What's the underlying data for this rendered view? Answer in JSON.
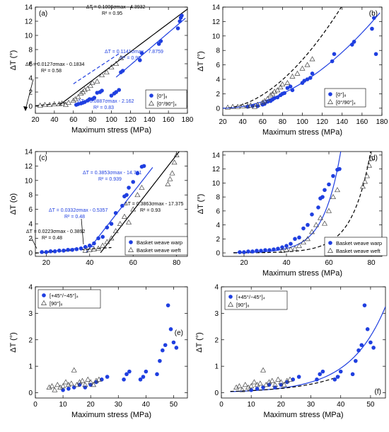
{
  "chart_data": [
    {
      "panel": "(a)",
      "type": "scatter",
      "xlabel": "Maximum stress (MPa)",
      "ylabel": "ΔT (°)",
      "xlim": [
        20,
        180
      ],
      "ylim": [
        -1,
        14
      ],
      "xticks": [
        20,
        40,
        60,
        80,
        100,
        120,
        140,
        160,
        180
      ],
      "yticks": [
        0,
        2,
        4,
        6,
        8,
        10,
        12,
        14
      ],
      "grid": false,
      "legend_position": "bottom-right",
      "legend": [
        "[0°]₈",
        "[0°/90°]₄"
      ],
      "series": [
        {
          "name": "[0°]₈",
          "marker": "filled-circle",
          "color": "#1f3fe0",
          "x": [
            63,
            65,
            68,
            70,
            72,
            75,
            77,
            80,
            82,
            85,
            88,
            90,
            100,
            103,
            105,
            108,
            110,
            112,
            130,
            132,
            150,
            152,
            170,
            172,
            173,
            174
          ],
          "y": [
            0.2,
            0.3,
            0.4,
            0.5,
            0.6,
            0.8,
            1.0,
            1.0,
            1.2,
            1.9,
            2.0,
            2.2,
            1.5,
            1.8,
            2.0,
            2.3,
            4.8,
            5.0,
            6.5,
            7.5,
            8.8,
            9.2,
            11.0,
            12.0,
            12.5,
            12.8
          ]
        },
        {
          "name": "[0°/90°]₄",
          "marker": "open-triangle",
          "color": "#444444",
          "x": [
            25,
            30,
            35,
            40,
            45,
            48,
            52,
            55,
            60,
            62,
            65,
            68,
            70,
            72,
            75,
            78,
            80,
            85,
            90,
            95,
            100,
            105,
            110
          ],
          "y": [
            0.1,
            0.2,
            0.2,
            0.3,
            0.3,
            0.4,
            0.2,
            0.5,
            0.8,
            1.0,
            1.3,
            1.8,
            2.0,
            2.3,
            2.5,
            2.9,
            3.3,
            3.5,
            4.4,
            4.8,
            5.5,
            6.0,
            6.8
          ]
        }
      ],
      "fits": [
        {
          "label": "ΔT = 0.1006σmax - 4.3932",
          "r2": "R² = 0.95",
          "color": "#000000",
          "dash": "solid",
          "slope": 0.1006,
          "intercept": -4.3932,
          "xrange": [
            45,
            180
          ]
        },
        {
          "label": "ΔT = 0.0127σmax - 0.1834",
          "r2": "R² = 0.58",
          "color": "#000000",
          "dash": "dashed",
          "slope": 0.0127,
          "intercept": -0.1834,
          "xrange": [
            20,
            52
          ]
        },
        {
          "label": "ΔT = 0.1141σmax - 7.8759",
          "r2": "R² = 0.98",
          "color": "#1f3fe0",
          "dash": "solid",
          "slope": 0.1141,
          "intercept": -7.8759,
          "xrange": [
            105,
            178
          ]
        },
        {
          "label": "ΔT = 0.0887σmax - 2.162",
          "r2": "R² = 0.83",
          "color": "#1f3fe0",
          "dash": "dashed",
          "slope": 0.0887,
          "intercept": -2.162,
          "xrange": [
            60,
            108
          ]
        }
      ]
    },
    {
      "panel": "(b)",
      "type": "scatter",
      "xlabel": "Maximum stress (MPa)",
      "ylabel": "ΔT (°)",
      "xlim": [
        20,
        180
      ],
      "ylim": [
        -1,
        14
      ],
      "xticks": [
        20,
        40,
        60,
        80,
        100,
        120,
        140,
        160,
        180
      ],
      "yticks": [
        0,
        2,
        4,
        6,
        8,
        10,
        12,
        14
      ],
      "grid": false,
      "legend_position": "bottom-right",
      "legend": [
        "[0°]₈",
        "[0°/90°]₄"
      ],
      "series": [
        {
          "name": "[0°]₈",
          "marker": "filled-circle",
          "color": "#1f3fe0",
          "x": [
            45,
            50,
            55,
            60,
            62,
            65,
            68,
            70,
            72,
            75,
            78,
            80,
            82,
            85,
            88,
            90,
            100,
            102,
            105,
            108,
            110,
            130,
            132,
            150,
            152,
            170,
            172,
            174
          ],
          "y": [
            0.2,
            0.3,
            0.3,
            0.5,
            0.6,
            0.9,
            1.0,
            1.2,
            1.4,
            1.5,
            1.8,
            2.0,
            2.1,
            2.8,
            3.0,
            2.5,
            3.5,
            3.8,
            4.0,
            4.2,
            4.8,
            6.5,
            7.5,
            8.8,
            9.2,
            11.0,
            12.5,
            7.5
          ]
        },
        {
          "name": "[0°/90°]₄",
          "marker": "open-triangle",
          "color": "#444444",
          "x": [
            25,
            30,
            35,
            40,
            45,
            48,
            52,
            55,
            60,
            62,
            65,
            68,
            70,
            72,
            75,
            78,
            80,
            85,
            90,
            95,
            100,
            105,
            110
          ],
          "y": [
            0.1,
            0.2,
            0.2,
            0.3,
            0.3,
            0.4,
            0.2,
            0.5,
            0.8,
            1.0,
            1.3,
            1.8,
            2.0,
            2.3,
            2.5,
            2.9,
            3.3,
            3.5,
            4.4,
            4.8,
            5.5,
            6.0,
            6.8
          ]
        }
      ],
      "fits": [
        {
          "color": "#000000",
          "dash": "dashed",
          "form": "power",
          "x0": 20,
          "a": 0.00202,
          "p": 1.85,
          "xrange": [
            20,
            158
          ]
        },
        {
          "color": "#1f3fe0",
          "dash": "solid",
          "form": "power",
          "x0": 20,
          "a": 0.000717,
          "p": 1.94,
          "xrange": [
            20,
            178
          ]
        }
      ]
    },
    {
      "panel": "(c)",
      "type": "scatter",
      "xlabel": "",
      "ylabel": "ΔT (o)",
      "xlim": [
        15,
        85
      ],
      "ylim": [
        -0.5,
        14
      ],
      "xticks": [
        20,
        40,
        60,
        80
      ],
      "yticks": [
        0,
        2,
        4,
        6,
        8,
        10,
        12,
        14
      ],
      "grid": false,
      "legend_position": "bottom-right",
      "legend": [
        "Basket weave warp",
        "Basket weave weft"
      ],
      "series": [
        {
          "name": "Basket weave warp",
          "marker": "filled-circle",
          "color": "#1f3fe0",
          "x": [
            18,
            20,
            22,
            24,
            26,
            28,
            30,
            32,
            34,
            36,
            38,
            40,
            42,
            44,
            46,
            48,
            50,
            52,
            55,
            56,
            57,
            58,
            60,
            62,
            64,
            65
          ],
          "y": [
            0.1,
            0.1,
            0.2,
            0.2,
            0.3,
            0.3,
            0.4,
            0.4,
            0.5,
            0.6,
            0.8,
            1.0,
            1.3,
            2.0,
            2.2,
            3.5,
            4.0,
            5.5,
            6.5,
            7.8,
            8.0,
            9.0,
            9.8,
            11.0,
            11.9,
            12.0
          ]
        },
        {
          "name": "Basket weave weft",
          "marker": "open-triangle",
          "color": "#444444",
          "x": [
            38,
            40,
            42,
            44,
            46,
            48,
            50,
            52,
            54,
            56,
            58,
            60,
            62,
            64,
            76,
            77,
            78,
            79,
            80
          ],
          "y": [
            0.3,
            0.4,
            0.5,
            0.6,
            1.0,
            1.5,
            2.0,
            3.0,
            4.0,
            5.0,
            4.2,
            6.0,
            8.0,
            9.0,
            9.5,
            10.2,
            11.0,
            12.5,
            13.5
          ]
        }
      ],
      "fits": [
        {
          "label": "ΔT = 0.3853σmax - 14.781",
          "r2": "R² = 0.939",
          "color": "#1f3fe0",
          "dash": "solid",
          "slope": 0.3853,
          "intercept": -14.781,
          "xrange": [
            38.4,
            69
          ]
        },
        {
          "label": "ΔT = 0.0332σmax - 0.5357",
          "r2": "R² = 0.48",
          "color": "#1f3fe0",
          "dash": "dashed",
          "slope": 0.0332,
          "intercept": -0.5357,
          "xrange": [
            17,
            42
          ]
        },
        {
          "label": "ΔT = 0.3863σmax - 17.375",
          "r2": "R² = 0.93",
          "color": "#000000",
          "dash": "solid",
          "slope": 0.3863,
          "intercept": -17.375,
          "xrange": [
            45,
            82
          ]
        },
        {
          "label": "ΔT = 0.0223σmax - 0.3892",
          "r2": "R² = 0.48",
          "color": "#000000",
          "dash": "dashed",
          "slope": 0.0223,
          "intercept": -0.3892,
          "xrange": [
            15,
            50
          ]
        }
      ]
    },
    {
      "panel": "(d)",
      "type": "scatter",
      "xlabel": "Maximum stress (MPa)",
      "ylabel": "ΔT (°)",
      "xlim": [
        10,
        85
      ],
      "ylim": [
        -0.5,
        14.5
      ],
      "xticks": [
        20,
        40,
        60,
        80
      ],
      "yticks": [
        0,
        2,
        4,
        6,
        8,
        10,
        12,
        14
      ],
      "grid": false,
      "legend_position": "bottom-right",
      "legend": [
        "Basket weave warp",
        "Basket weave weft"
      ],
      "series": [
        {
          "name": "Basket weave warp",
          "marker": "filled-circle",
          "color": "#1f3fe0",
          "x": [
            18,
            20,
            22,
            24,
            26,
            28,
            30,
            32,
            34,
            36,
            38,
            40,
            42,
            44,
            46,
            48,
            50,
            52,
            55,
            56,
            57,
            58,
            60,
            62,
            64,
            65
          ],
          "y": [
            0.1,
            0.1,
            0.2,
            0.2,
            0.3,
            0.3,
            0.4,
            0.4,
            0.5,
            0.6,
            0.8,
            1.0,
            1.3,
            2.0,
            2.2,
            3.5,
            4.0,
            5.5,
            6.5,
            7.8,
            8.0,
            9.0,
            9.8,
            11.0,
            11.9,
            12.0
          ]
        },
        {
          "name": "Basket weave weft",
          "marker": "open-triangle",
          "color": "#444444",
          "x": [
            38,
            40,
            42,
            44,
            46,
            48,
            50,
            52,
            54,
            56,
            58,
            60,
            62,
            64,
            76,
            77,
            78,
            79,
            80
          ],
          "y": [
            0.3,
            0.4,
            0.5,
            0.6,
            1.0,
            1.5,
            2.0,
            3.0,
            4.0,
            5.0,
            4.2,
            6.0,
            8.0,
            9.0,
            9.5,
            10.2,
            11.0,
            12.5,
            13.5
          ]
        }
      ],
      "fits": [
        {
          "color": "#1f3fe0",
          "dash": "solid",
          "form": "exp",
          "a": 0.00455,
          "b": 0.123,
          "xrange": [
            15,
            68
          ]
        },
        {
          "color": "#000000",
          "dash": "dashed",
          "form": "exp",
          "a": 0.00154,
          "b": 0.1148,
          "xrange": [
            15,
            80
          ]
        }
      ]
    },
    {
      "panel": "(e)",
      "type": "scatter",
      "xlabel": "Maximum stress (MPa)",
      "ylabel": "ΔT (°)",
      "xlim": [
        0,
        55
      ],
      "ylim": [
        -0.2,
        4
      ],
      "xticks": [
        0,
        10,
        20,
        30,
        40,
        50
      ],
      "yticks": [
        0,
        1,
        2,
        3,
        4
      ],
      "grid": false,
      "legend_position": "top-left",
      "legend": [
        "[+45°/−45°]₄",
        "[90°]₈"
      ],
      "series": [
        {
          "name": "[+45°/−45°]₄",
          "marker": "filled-circle",
          "color": "#1f3fe0",
          "x": [
            10,
            12,
            14,
            16,
            18,
            20,
            22,
            24,
            26,
            32,
            33,
            34,
            38,
            39,
            40,
            44,
            45,
            46,
            47,
            48,
            49,
            50,
            51
          ],
          "y": [
            0.1,
            0.15,
            0.2,
            0.3,
            0.2,
            0.3,
            0.4,
            0.5,
            0.6,
            0.5,
            0.7,
            0.8,
            0.5,
            0.6,
            0.8,
            0.7,
            1.2,
            1.6,
            1.8,
            3.3,
            2.4,
            1.9,
            1.7
          ]
        },
        {
          "name": "[90°]₈",
          "marker": "open-triangle",
          "color": "#444444",
          "x": [
            5,
            6,
            7,
            8,
            9,
            10,
            11,
            12,
            13,
            14,
            15,
            16,
            17,
            18,
            19,
            20,
            21,
            22,
            23
          ],
          "y": [
            0.2,
            0.25,
            0.1,
            0.3,
            0.2,
            0.25,
            0.4,
            0.3,
            0.35,
            0.85,
            0.3,
            0.4,
            0.45,
            0.3,
            0.5,
            0.4,
            0.3,
            0.45,
            0.5
          ]
        }
      ]
    },
    {
      "panel": "(f)",
      "type": "scatter",
      "xlabel": "Maximum stress (MPa)",
      "ylabel": "ΔT (°)",
      "xlim": [
        0,
        55
      ],
      "ylim": [
        -0.2,
        4
      ],
      "xticks": [
        0,
        10,
        20,
        30,
        40,
        50
      ],
      "yticks": [
        0,
        1,
        2,
        3,
        4
      ],
      "grid": false,
      "legend_position": "top-left",
      "legend": [
        "[+45°/−45°]₄",
        "[90°]₈"
      ],
      "series": [
        {
          "name": "[+45°/−45°]₄",
          "marker": "filled-circle",
          "color": "#1f3fe0",
          "x": [
            10,
            12,
            14,
            16,
            18,
            20,
            22,
            24,
            26,
            32,
            33,
            34,
            38,
            39,
            40,
            44,
            45,
            46,
            47,
            48,
            49,
            50,
            51
          ],
          "y": [
            0.1,
            0.15,
            0.2,
            0.3,
            0.2,
            0.3,
            0.4,
            0.5,
            0.6,
            0.5,
            0.7,
            0.8,
            0.5,
            0.6,
            0.8,
            0.7,
            1.2,
            1.6,
            1.8,
            3.3,
            2.4,
            1.9,
            1.7
          ]
        },
        {
          "name": "[90°]₈",
          "marker": "open-triangle",
          "color": "#444444",
          "x": [
            5,
            6,
            7,
            8,
            9,
            10,
            11,
            12,
            13,
            14,
            15,
            16,
            17,
            18,
            19,
            20,
            21,
            22,
            23
          ],
          "y": [
            0.2,
            0.25,
            0.1,
            0.3,
            0.2,
            0.25,
            0.4,
            0.3,
            0.35,
            0.85,
            0.3,
            0.4,
            0.45,
            0.3,
            0.5,
            0.4,
            0.3,
            0.45,
            0.5
          ]
        }
      ],
      "fits": [
        {
          "color": "#1f3fe0",
          "dash": "solid",
          "form": "exp",
          "a": 0.0324,
          "b": 0.0838,
          "xrange": [
            3,
            55
          ]
        },
        {
          "color": "#000000",
          "dash": "dashed",
          "form": "exp",
          "a": 0.0406,
          "b": 0.069,
          "xrange": [
            3,
            40
          ]
        }
      ]
    }
  ]
}
